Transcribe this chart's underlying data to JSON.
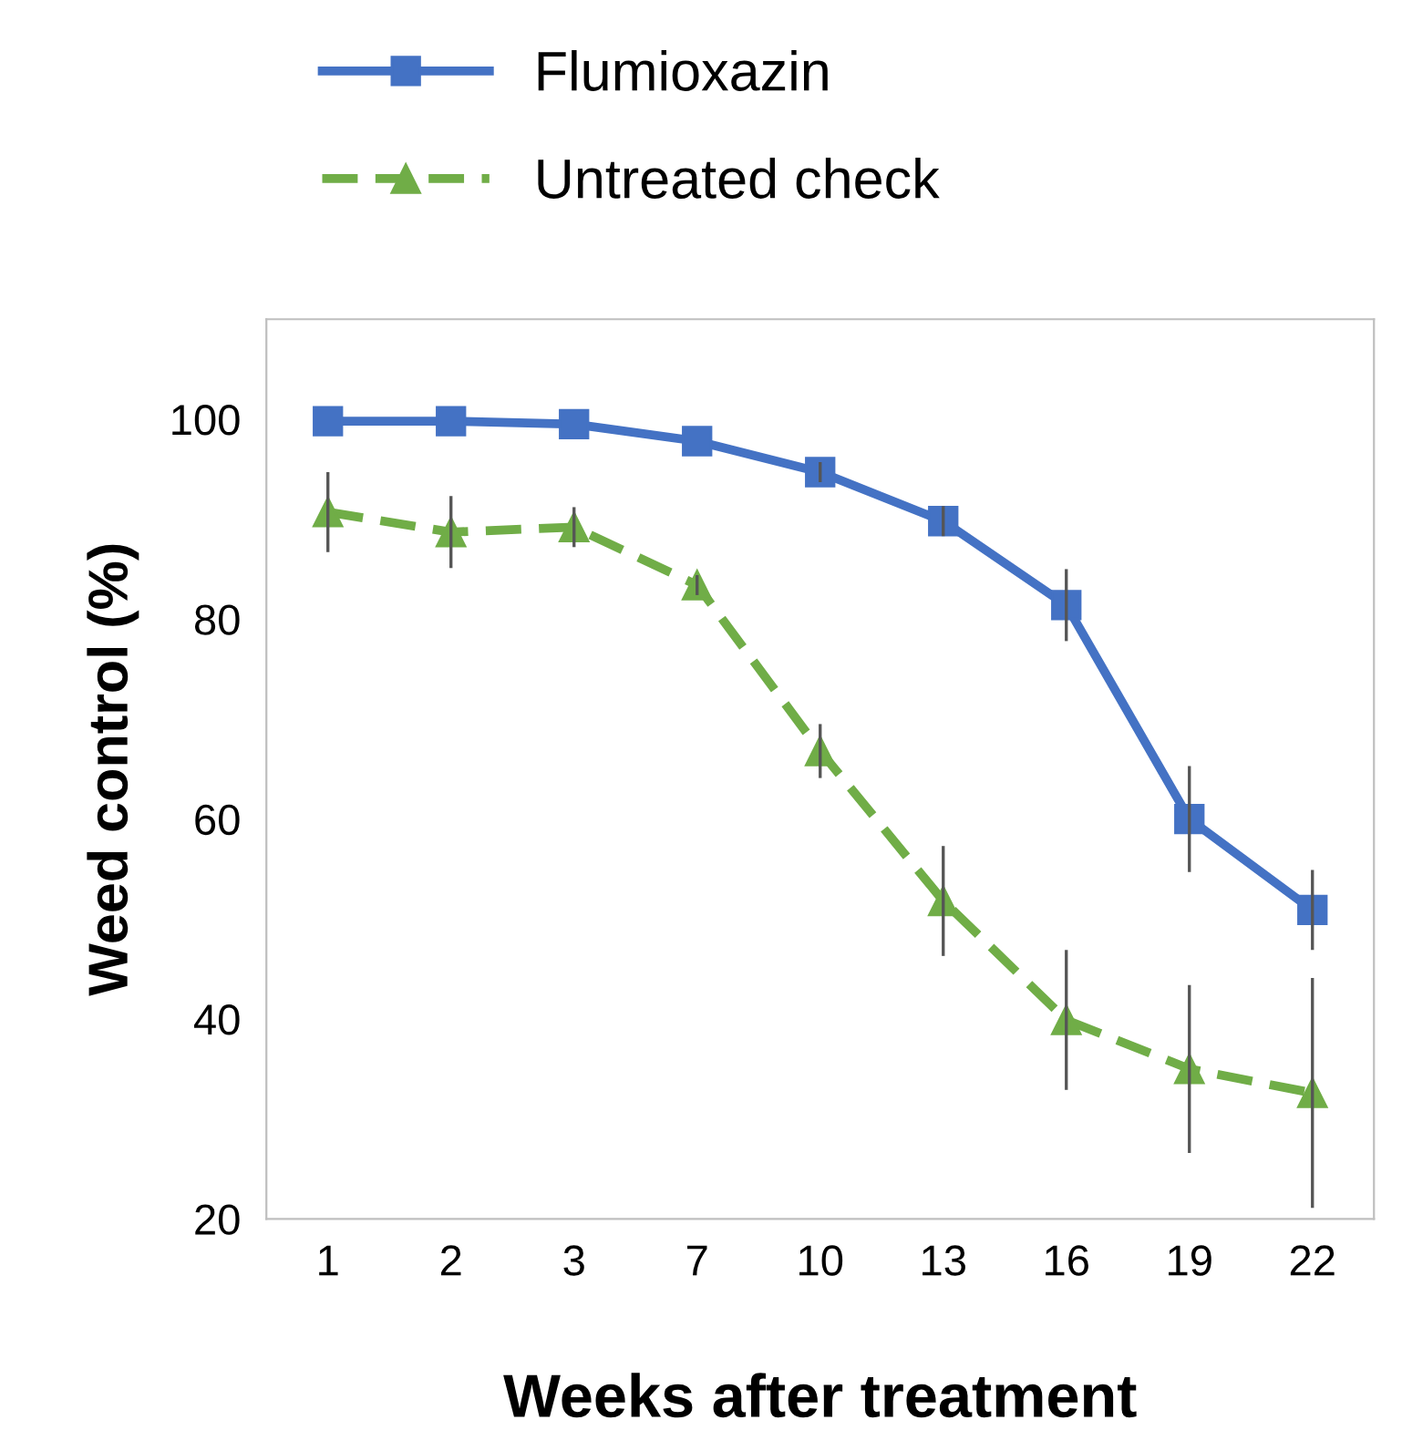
{
  "chart_data": {
    "type": "line",
    "xlabel": "Weeks after treatment",
    "ylabel": "Weed control (%)",
    "categories": [
      "1",
      "2",
      "3",
      "7",
      "10",
      "13",
      "16",
      "19",
      "22"
    ],
    "series": [
      {
        "name": "Flumioxazin",
        "color": "#4472c4",
        "marker": "square",
        "line_style": "solid",
        "values": [
          99.8,
          99.8,
          99.5,
          97.8,
          94.7,
          89.8,
          81.4,
          60,
          50.9
        ],
        "errors": [
          null,
          null,
          null,
          null,
          1,
          1.5,
          3.6,
          5.3,
          4
        ]
      },
      {
        "name": "Untreated check",
        "color": "#70ad47",
        "marker": "triangle",
        "line_style": "dashed",
        "values": [
          90.7,
          88.7,
          89.2,
          83.4,
          66.8,
          51.8,
          39.9,
          35,
          32.6
        ],
        "errors": [
          4,
          3.6,
          2,
          1,
          2.7,
          5.5,
          7,
          8.4,
          11.5
        ]
      }
    ],
    "ylim": [
      20,
      110
    ],
    "yticks": [
      20,
      40,
      60,
      80,
      100
    ],
    "grid": false,
    "legend": "top"
  }
}
